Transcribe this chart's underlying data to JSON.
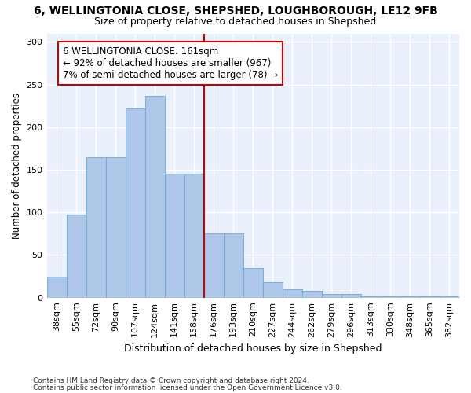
{
  "title1": "6, WELLINGTONIA CLOSE, SHEPSHED, LOUGHBOROUGH, LE12 9FB",
  "title2": "Size of property relative to detached houses in Shepshed",
  "xlabel": "Distribution of detached houses by size in Shepshed",
  "ylabel": "Number of detached properties",
  "footer1": "Contains HM Land Registry data © Crown copyright and database right 2024.",
  "footer2": "Contains public sector information licensed under the Open Government Licence v3.0.",
  "categories": [
    "38sqm",
    "55sqm",
    "72sqm",
    "90sqm",
    "107sqm",
    "124sqm",
    "141sqm",
    "158sqm",
    "176sqm",
    "193sqm",
    "210sqm",
    "227sqm",
    "244sqm",
    "262sqm",
    "279sqm",
    "296sqm",
    "313sqm",
    "330sqm",
    "348sqm",
    "365sqm",
    "382sqm"
  ],
  "values": [
    25,
    97,
    165,
    165,
    222,
    237,
    145,
    145,
    75,
    75,
    35,
    18,
    10,
    8,
    4,
    4,
    2,
    2,
    2,
    2,
    2
  ],
  "bar_color": "#aec6e8",
  "bar_edge_color": "#6aaad4",
  "vline_index": 7.5,
  "vline_color": "#cc0000",
  "annotation_text": "6 WELLINGTONIA CLOSE: 161sqm\n← 92% of detached houses are smaller (967)\n7% of semi-detached houses are larger (78) →",
  "annotation_box_facecolor": "white",
  "annotation_box_edgecolor": "#cc0000",
  "ylim": [
    0,
    310
  ],
  "yticks": [
    0,
    50,
    100,
    150,
    200,
    250,
    300
  ],
  "bg_color": "#eaf0fb",
  "grid_color": "#ffffff",
  "title1_fontsize": 10,
  "title2_fontsize": 9,
  "xlabel_fontsize": 9,
  "ylabel_fontsize": 8.5,
  "tick_fontsize": 8,
  "annotation_fontsize": 8.5,
  "footer_fontsize": 6.5
}
